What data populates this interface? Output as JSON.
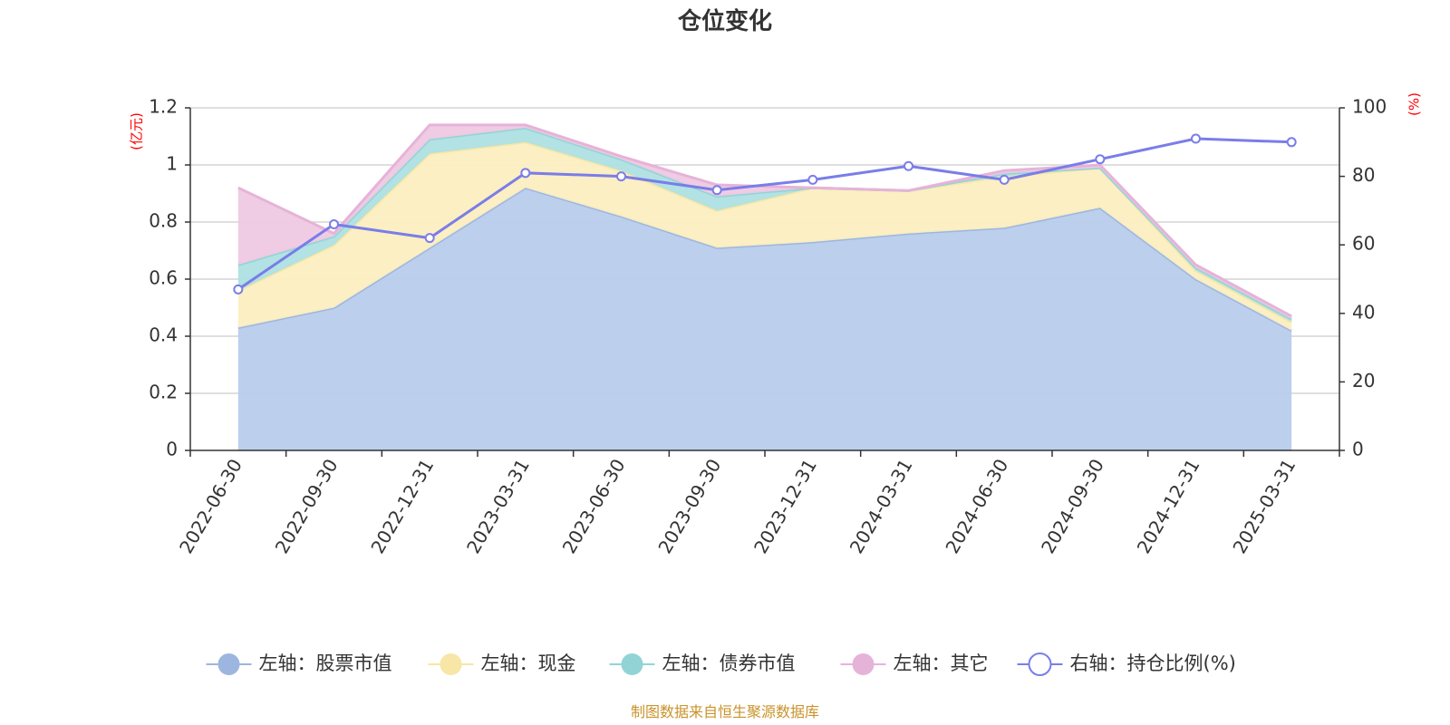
{
  "chart_data": {
    "type": "area",
    "title": "仓位变化",
    "left_axis_unit": "(亿元)",
    "right_axis_unit": "(%)",
    "categories": [
      "2022-06-30",
      "2022-09-30",
      "2022-12-31",
      "2023-03-31",
      "2023-06-30",
      "2023-09-30",
      "2023-12-31",
      "2024-03-31",
      "2024-06-30",
      "2024-09-30",
      "2024-12-31",
      "2025-03-31"
    ],
    "left_ylim": [
      0,
      1.2
    ],
    "left_yticks": [
      "0",
      "0.2",
      "0.4",
      "0.6",
      "0.8",
      "1",
      "1.2"
    ],
    "right_ylim": [
      0,
      100
    ],
    "right_yticks": [
      "0",
      "20",
      "40",
      "60",
      "80",
      "100"
    ],
    "grid": true,
    "legend_position": "bottom",
    "series": [
      {
        "name": "左轴：股票市值",
        "axis": "left",
        "kind": "stacked-area",
        "color": "#9db6e0",
        "fill": "#b8cceb",
        "values": [
          0.43,
          0.5,
          0.71,
          0.92,
          0.82,
          0.71,
          0.73,
          0.76,
          0.78,
          0.85,
          0.6,
          0.42
        ]
      },
      {
        "name": "左轴：现金",
        "axis": "left",
        "kind": "stacked-area",
        "color": "#f7e6a6",
        "fill": "#fbeec0",
        "values": [
          0.13,
          0.22,
          0.33,
          0.16,
          0.16,
          0.13,
          0.19,
          0.15,
          0.18,
          0.14,
          0.03,
          0.03
        ]
      },
      {
        "name": "左轴：债券市值",
        "axis": "left",
        "kind": "stacked-area",
        "color": "#92d4d6",
        "fill": "#aee0e1",
        "values": [
          0.09,
          0.03,
          0.05,
          0.05,
          0.04,
          0.05,
          0.0,
          0.0,
          0.01,
          0.0,
          0.01,
          0.01
        ]
      },
      {
        "name": "左轴：其它",
        "axis": "left",
        "kind": "stacked-area",
        "color": "#e6b3d8",
        "fill": "#efc9e3",
        "values": [
          0.27,
          0.01,
          0.05,
          0.01,
          0.01,
          0.04,
          0.0,
          0.0,
          0.01,
          0.01,
          0.01,
          0.01
        ]
      },
      {
        "name": "右轴：持仓比例(%)",
        "axis": "right",
        "kind": "line",
        "color": "#7a7de8",
        "values": [
          47,
          66,
          62,
          81,
          80,
          76,
          79,
          83,
          79,
          85,
          91,
          90
        ]
      }
    ],
    "source": "制图数据来自恒生聚源数据库"
  }
}
